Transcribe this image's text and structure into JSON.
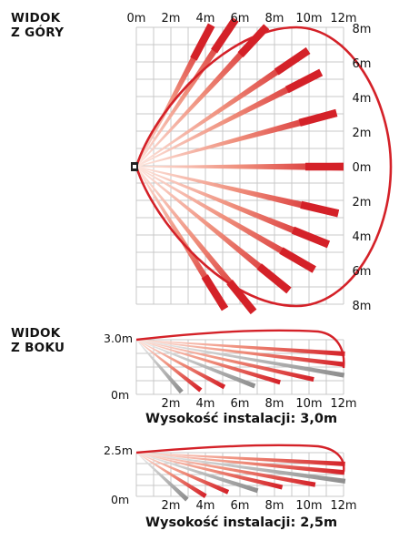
{
  "top": {
    "heading_line1": "WIDOK",
    "heading_line2": "Z GÓRY",
    "x_ticks": [
      "0m",
      "2m",
      "4m",
      "6m",
      "8m",
      "10m",
      "12m"
    ],
    "y_ticks": [
      "8m",
      "6m",
      "4m",
      "2m",
      "0m",
      "2m",
      "4m",
      "6m",
      "8m"
    ]
  },
  "side": {
    "heading_line1": "WIDOK",
    "heading_line2": "Z BOKU",
    "x_ticks": [
      "2m",
      "4m",
      "6m",
      "8m",
      "10m",
      "12m"
    ],
    "views": [
      {
        "height_label": "3.0m",
        "zero_label": "0m",
        "caption": "Wysokość instalacji: 3,0m"
      },
      {
        "height_label": "2.5m",
        "zero_label": "0m",
        "caption": "Wysokość instalacji: 2,5m"
      }
    ]
  },
  "colors": {
    "grid": "#c8c8c8",
    "outline": "#d42128",
    "beam_far": "#d42128",
    "beam_near": "#f3c0b0",
    "beam_gray": "#9a9a9a",
    "sensor": "#222222"
  }
}
